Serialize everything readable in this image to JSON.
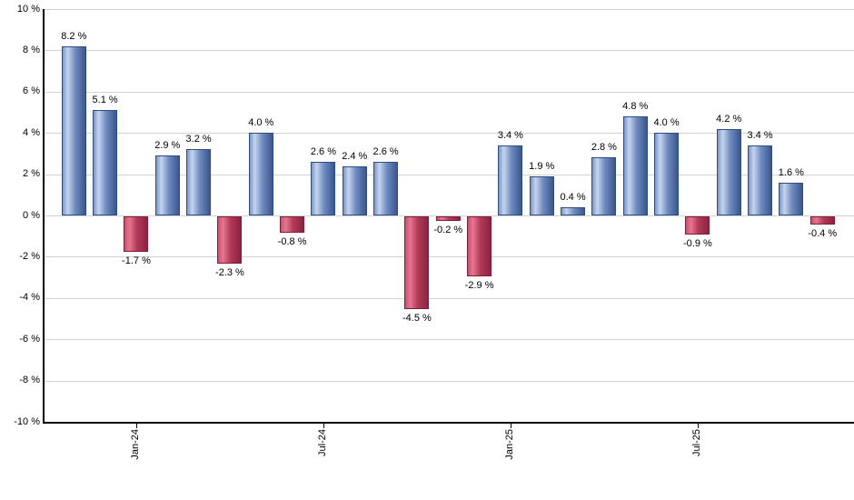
{
  "chart_data": {
    "type": "bar",
    "title": "",
    "xlabel": "",
    "ylabel": "",
    "ylim": [
      -10,
      10
    ],
    "y_tick_step": 2,
    "grid": true,
    "legend": "none",
    "y_tick_labels": [
      "10 %",
      "8 %",
      "6 %",
      "4 %",
      "2 %",
      "0 %",
      "-2 %",
      "-4 %",
      "-6 %",
      "-8 %",
      "-10 %"
    ],
    "values": [
      8.2,
      5.1,
      -1.7,
      2.9,
      3.2,
      -2.3,
      4.0,
      -0.8,
      2.6,
      2.4,
      2.6,
      -4.5,
      -0.2,
      -2.9,
      3.4,
      1.9,
      0.4,
      2.8,
      4.8,
      4.0,
      -0.9,
      4.2,
      3.4,
      1.6,
      -0.4
    ],
    "value_labels": [
      "8.2 %",
      "5.1 %",
      "-1.7 %",
      "2.9 %",
      "3.2 %",
      "-2.3 %",
      "4.0 %",
      "-0.8 %",
      "2.6 %",
      "2.4 %",
      "2.6 %",
      "-4.5 %",
      "-0.2 %",
      "-2.9 %",
      "3.4 %",
      "1.9 %",
      "0.4 %",
      "2.8 %",
      "4.8 %",
      "4.0 %",
      "-0.9 %",
      "4.2 %",
      "3.4 %",
      "1.6 %",
      "-0.4 %"
    ],
    "x_ticks": [
      {
        "label": "Jan-24",
        "bar_index": 2
      },
      {
        "label": "Jul-24",
        "bar_index": 8
      },
      {
        "label": "Jan-25",
        "bar_index": 14
      },
      {
        "label": "Jul-25",
        "bar_index": 20
      }
    ],
    "colors": {
      "positive_bar_gradient": [
        "#7a97c7",
        "#c6d4ef",
        "#6d8cc0",
        "#3b568e"
      ],
      "negative_bar_gradient": [
        "#c94f70",
        "#e8768f",
        "#b13a58",
        "#8a2440"
      ],
      "positive_border": "#2e4d80",
      "negative_border": "#7e1f3a",
      "gridline": "#d3d3d3",
      "axis": "#000000",
      "label_text": "#000000"
    }
  }
}
